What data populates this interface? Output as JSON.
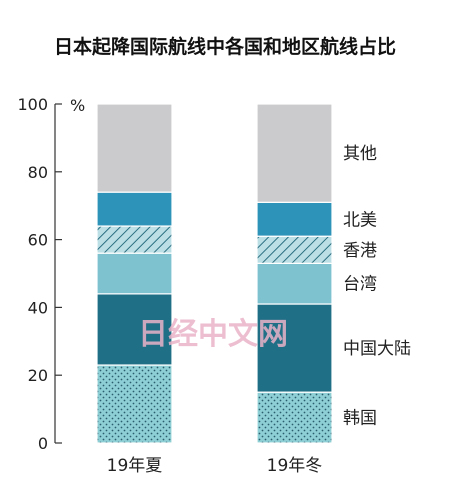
{
  "chart_data": {
    "type": "bar",
    "stacked": true,
    "title": "日本起降国际航线中各国和地区航线占比",
    "unit": "%",
    "ylim": [
      0,
      100
    ],
    "yticks": [
      0,
      20,
      40,
      60,
      80,
      100
    ],
    "categories": [
      "19年夏",
      "19年冬"
    ],
    "series": [
      {
        "name": "韩国",
        "values": [
          23,
          15
        ],
        "color": "#8ecfd6",
        "pattern": "dots"
      },
      {
        "name": "中国大陆",
        "values": [
          21,
          26
        ],
        "color": "#1f6f86",
        "pattern": "none"
      },
      {
        "name": "台湾",
        "values": [
          12,
          12
        ],
        "color": "#7ec2d0",
        "pattern": "none"
      },
      {
        "name": "香港",
        "values": [
          8,
          8
        ],
        "color": "#bcdfe6",
        "pattern": "hatch"
      },
      {
        "name": "北美",
        "values": [
          10,
          10
        ],
        "color": "#2e93b8",
        "pattern": "none"
      },
      {
        "name": "其他",
        "values": [
          26,
          29
        ],
        "color": "#cbcbcd",
        "pattern": "none"
      }
    ],
    "legend_position": "right"
  },
  "watermark": "日经中文网"
}
